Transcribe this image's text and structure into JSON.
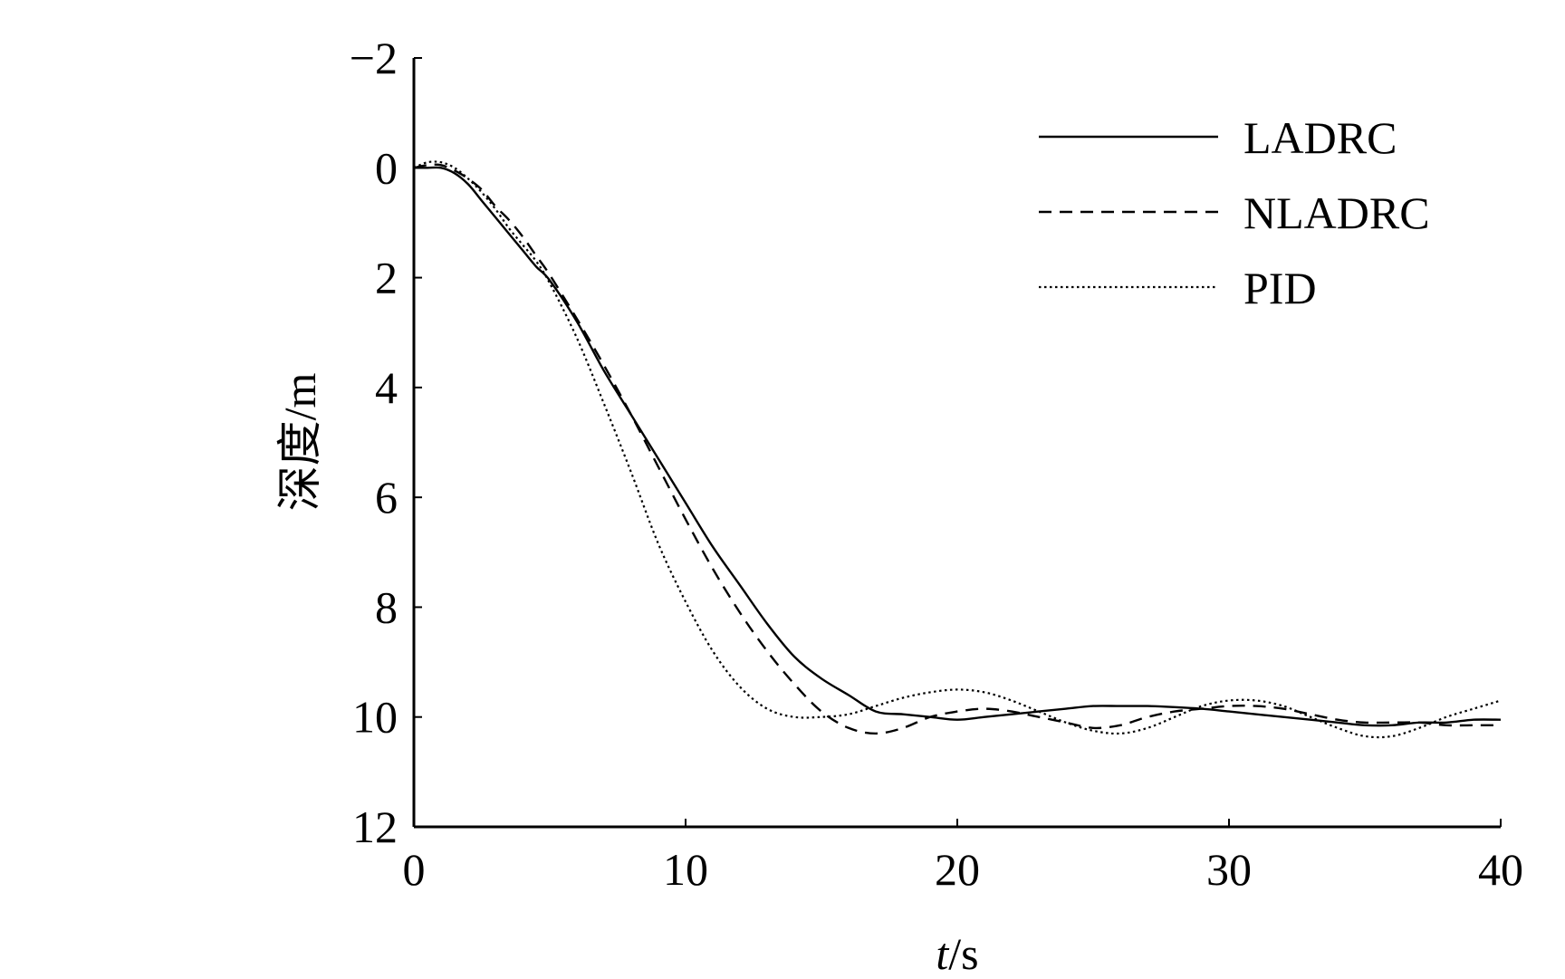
{
  "chart_data": {
    "type": "line",
    "xlabel": {
      "italic": "t",
      "rest": "/s"
    },
    "ylabel": "深度/m",
    "xlim": [
      0,
      40
    ],
    "ylim": [
      -2,
      12
    ],
    "y_inverted": true,
    "x_ticks": [
      0,
      10,
      20,
      30,
      40
    ],
    "y_ticks": [
      -2,
      0,
      2,
      4,
      6,
      8,
      10,
      12
    ],
    "y_tick_labels": [
      "−2",
      "0",
      "2",
      "4",
      "6",
      "8",
      "10",
      "12"
    ],
    "grid": false,
    "legend_position": "top-right",
    "series": [
      {
        "name": "LADRC",
        "style": "solid",
        "color": "#000000",
        "x": [
          0,
          0.5,
          1,
          1.5,
          2,
          2.5,
          3,
          3.5,
          4,
          4.5,
          5,
          6,
          7,
          8,
          9,
          10,
          11,
          12,
          13,
          14,
          15,
          16,
          17,
          18,
          19,
          20,
          21,
          22,
          23,
          24,
          25,
          26,
          27,
          28,
          29,
          30,
          31,
          32,
          33,
          34,
          35,
          36,
          37,
          38,
          39,
          40
        ],
        "y": [
          0.0,
          0.0,
          0.0,
          0.1,
          0.3,
          0.6,
          0.9,
          1.2,
          1.5,
          1.8,
          2.05,
          2.8,
          3.7,
          4.5,
          5.3,
          6.1,
          6.9,
          7.6,
          8.3,
          8.9,
          9.3,
          9.6,
          9.9,
          9.95,
          10.0,
          10.05,
          10.0,
          9.95,
          9.9,
          9.85,
          9.8,
          9.8,
          9.8,
          9.82,
          9.85,
          9.9,
          9.95,
          10.0,
          10.05,
          10.1,
          10.15,
          10.15,
          10.1,
          10.1,
          10.05,
          10.05
        ]
      },
      {
        "name": "NLADRC",
        "style": "dashed",
        "color": "#000000",
        "x": [
          0,
          0.5,
          1,
          1.5,
          2,
          2.5,
          3,
          3.5,
          4,
          4.5,
          5,
          6,
          7,
          8,
          9,
          10,
          11,
          12,
          13,
          14,
          15,
          16,
          17,
          18,
          19,
          20,
          21,
          22,
          23,
          24,
          25,
          26,
          27,
          28,
          29,
          30,
          31,
          32,
          33,
          34,
          35,
          36,
          37,
          38,
          39,
          40
        ],
        "y": [
          0.0,
          -0.05,
          -0.05,
          0.05,
          0.2,
          0.4,
          0.7,
          0.95,
          1.25,
          1.6,
          1.95,
          2.75,
          3.6,
          4.5,
          5.45,
          6.4,
          7.3,
          8.1,
          8.8,
          9.4,
          9.9,
          10.2,
          10.3,
          10.2,
          10.0,
          9.9,
          9.85,
          9.9,
          10.0,
          10.1,
          10.2,
          10.15,
          10.0,
          9.9,
          9.85,
          9.8,
          9.8,
          9.85,
          9.95,
          10.05,
          10.1,
          10.1,
          10.1,
          10.15,
          10.15,
          10.15
        ]
      },
      {
        "name": "PID",
        "style": "dotted",
        "color": "#000000",
        "x": [
          0,
          0.5,
          1,
          1.5,
          2,
          2.5,
          3,
          3.5,
          4,
          4.5,
          5,
          6,
          7,
          8,
          9,
          10,
          11,
          12,
          13,
          14,
          15,
          16,
          17,
          18,
          19,
          20,
          21,
          22,
          23,
          24,
          25,
          26,
          27,
          28,
          29,
          30,
          31,
          32,
          33,
          34,
          35,
          36,
          37,
          38,
          39,
          40
        ],
        "y": [
          0.0,
          -0.1,
          -0.1,
          0.0,
          0.2,
          0.45,
          0.75,
          1.1,
          1.4,
          1.7,
          2.1,
          3.1,
          4.3,
          5.55,
          6.85,
          7.9,
          8.8,
          9.45,
          9.85,
          10.0,
          10.0,
          9.95,
          9.8,
          9.65,
          9.55,
          9.5,
          9.55,
          9.7,
          9.9,
          10.1,
          10.25,
          10.3,
          10.2,
          10.0,
          9.8,
          9.7,
          9.7,
          9.8,
          10.0,
          10.2,
          10.35,
          10.35,
          10.2,
          10.0,
          9.85,
          9.7
        ]
      }
    ]
  }
}
